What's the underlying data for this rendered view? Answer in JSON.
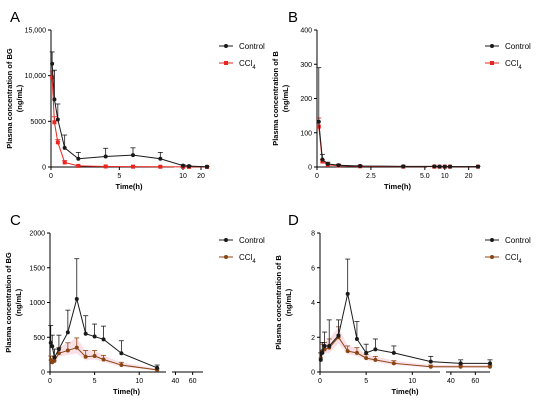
{
  "colors": {
    "control": "#1a1a1a",
    "ccl4_red": "#e8251f",
    "ccl4_brown": "#8b4513",
    "ccl4_band": "#f4c6d3"
  },
  "chart_data": [
    {
      "panel": "A",
      "type": "line",
      "ylabel_line1": "Plasma concentration of BG",
      "ylabel_line2": "(ng/mL)",
      "xlabel": "Time(h)",
      "ylim": [
        0,
        15000
      ],
      "yticks": [
        "0",
        "5000",
        "10,000",
        "15,000"
      ],
      "ytick_values": [
        0,
        5000,
        10000,
        15000
      ],
      "xticks": [
        "0",
        "5",
        "10",
        "20"
      ],
      "xtick_values": [
        0,
        5,
        10,
        20
      ],
      "x_break": true,
      "legend_position": "top-right",
      "series": [
        {
          "name": "Control",
          "color": "#1a1a1a",
          "marker": "circle",
          "x": [
            0.083,
            0.25,
            0.5,
            1,
            2,
            4,
            6,
            8,
            10,
            12,
            24
          ],
          "y": [
            11300,
            7400,
            5200,
            2100,
            900,
            1150,
            1300,
            900,
            150,
            100,
            30
          ],
          "err": [
            1300,
            3200,
            1700,
            1400,
            700,
            900,
            800,
            700,
            100,
            80,
            20
          ]
        },
        {
          "name": "CCl4",
          "color": "#e8251f",
          "marker": "square",
          "x": [
            0.083,
            0.25,
            0.5,
            1,
            2,
            4,
            6,
            8,
            10,
            12,
            24
          ],
          "y": [
            9800,
            4900,
            2700,
            500,
            120,
            60,
            40,
            30,
            20,
            15,
            10
          ],
          "err": [
            700,
            600,
            300,
            200,
            50,
            30,
            20,
            15,
            10,
            8,
            5
          ]
        }
      ]
    },
    {
      "panel": "B",
      "type": "line",
      "ylabel_line1": "Plasma concentration of B",
      "ylabel_line2": "(ng/mL)",
      "xlabel": "Time(h)",
      "ylim": [
        0,
        400
      ],
      "yticks": [
        "0",
        "100",
        "200",
        "300",
        "400"
      ],
      "ytick_values": [
        0,
        100,
        200,
        300,
        400
      ],
      "xticks": [
        "0",
        "2.5",
        "5.0",
        "10",
        "20"
      ],
      "xtick_values": [
        0,
        2.5,
        5,
        10,
        20
      ],
      "x_break": true,
      "legend_position": "top-right",
      "series": [
        {
          "name": "Control",
          "color": "#1a1a1a",
          "marker": "circle",
          "x": [
            0.083,
            0.25,
            0.5,
            1,
            2,
            4,
            6,
            8,
            10,
            12,
            24
          ],
          "y": [
            132,
            22,
            9,
            5,
            3,
            2,
            2,
            1,
            1,
            1,
            1
          ],
          "err": [
            158,
            15,
            5,
            3,
            2,
            1,
            1,
            1,
            1,
            1,
            1
          ]
        },
        {
          "name": "CCl4",
          "color": "#e8251f",
          "marker": "square",
          "x": [
            0.083,
            0.25,
            0.5,
            1,
            2,
            4,
            6,
            8,
            10,
            12,
            24
          ],
          "y": [
            118,
            16,
            6,
            4,
            2,
            1,
            1,
            1,
            1,
            1,
            1
          ],
          "err": [
            25,
            6,
            3,
            2,
            1,
            1,
            1,
            1,
            1,
            1,
            1
          ]
        }
      ]
    },
    {
      "panel": "C",
      "type": "line",
      "ylabel_line1": "Plasma concentration of BG",
      "ylabel_line2": "(ng/mL)",
      "xlabel": "Time(h)",
      "ylim": [
        0,
        2000
      ],
      "yticks": [
        "0",
        "500",
        "1000",
        "1500",
        "2000"
      ],
      "ytick_values": [
        0,
        500,
        1000,
        1500,
        2000
      ],
      "xticks": [
        "0",
        "5",
        "10",
        "40",
        "60"
      ],
      "xtick_values": [
        0,
        5,
        10,
        40,
        60
      ],
      "x_break": true,
      "legend_position": "top-right",
      "series": [
        {
          "name": "Control",
          "color": "#1a1a1a",
          "marker": "circle",
          "x": [
            0.083,
            0.25,
            0.5,
            1,
            2,
            3,
            4,
            5,
            6,
            8,
            12
          ],
          "y": [
            420,
            370,
            210,
            330,
            570,
            1050,
            550,
            510,
            470,
            270,
            60
          ],
          "err": [
            250,
            160,
            120,
            200,
            320,
            580,
            260,
            180,
            190,
            180,
            40
          ]
        },
        {
          "name": "CCl4",
          "color": "#8b4513",
          "marker": "circle",
          "x": [
            0.083,
            0.25,
            0.5,
            1,
            2,
            3,
            4,
            5,
            6,
            8,
            12
          ],
          "y": [
            170,
            140,
            160,
            270,
            310,
            350,
            220,
            230,
            180,
            100,
            30
          ],
          "err": [
            60,
            50,
            60,
            80,
            110,
            140,
            90,
            80,
            60,
            40,
            15
          ]
        }
      ]
    },
    {
      "panel": "D",
      "type": "line",
      "ylabel_line1": "Plasma concentration of B",
      "ylabel_line2": "(ng/mL)",
      "xlabel": "Time(h)",
      "ylim": [
        0,
        8
      ],
      "yticks": [
        "0",
        "2",
        "4",
        "6",
        "8"
      ],
      "ytick_values": [
        0,
        2,
        4,
        6,
        8
      ],
      "xticks": [
        "0",
        "5",
        "10",
        "40",
        "60"
      ],
      "xtick_values": [
        0,
        5,
        10,
        40,
        60
      ],
      "x_break": true,
      "legend_position": "top-right",
      "series": [
        {
          "name": "Control",
          "color": "#1a1a1a",
          "marker": "circle",
          "x": [
            0.083,
            0.25,
            0.5,
            1,
            2,
            3,
            4,
            5,
            6,
            8,
            12,
            48,
            72
          ],
          "y": [
            0.7,
            1.1,
            1.5,
            1.5,
            2.1,
            4.5,
            1.9,
            1.1,
            1.3,
            1.1,
            0.6,
            0.5,
            0.5
          ],
          "err": [
            0.4,
            0.6,
            0.8,
            1.5,
            0.9,
            2.0,
            1.0,
            0.5,
            0.6,
            0.4,
            0.3,
            0.2,
            0.2
          ]
        },
        {
          "name": "CCl4",
          "color": "#8b4513",
          "marker": "circle",
          "x": [
            0.083,
            0.25,
            0.5,
            1,
            2,
            3,
            4,
            5,
            6,
            8,
            12,
            48,
            72
          ],
          "y": [
            0.8,
            1.2,
            1.3,
            1.4,
            2.0,
            1.2,
            1.1,
            0.8,
            0.7,
            0.5,
            0.3,
            0.3,
            0.3
          ],
          "err": [
            0.3,
            0.4,
            0.4,
            0.5,
            0.6,
            0.3,
            0.3,
            0.2,
            0.2,
            0.15,
            0.1,
            0.1,
            0.1
          ]
        }
      ]
    }
  ]
}
